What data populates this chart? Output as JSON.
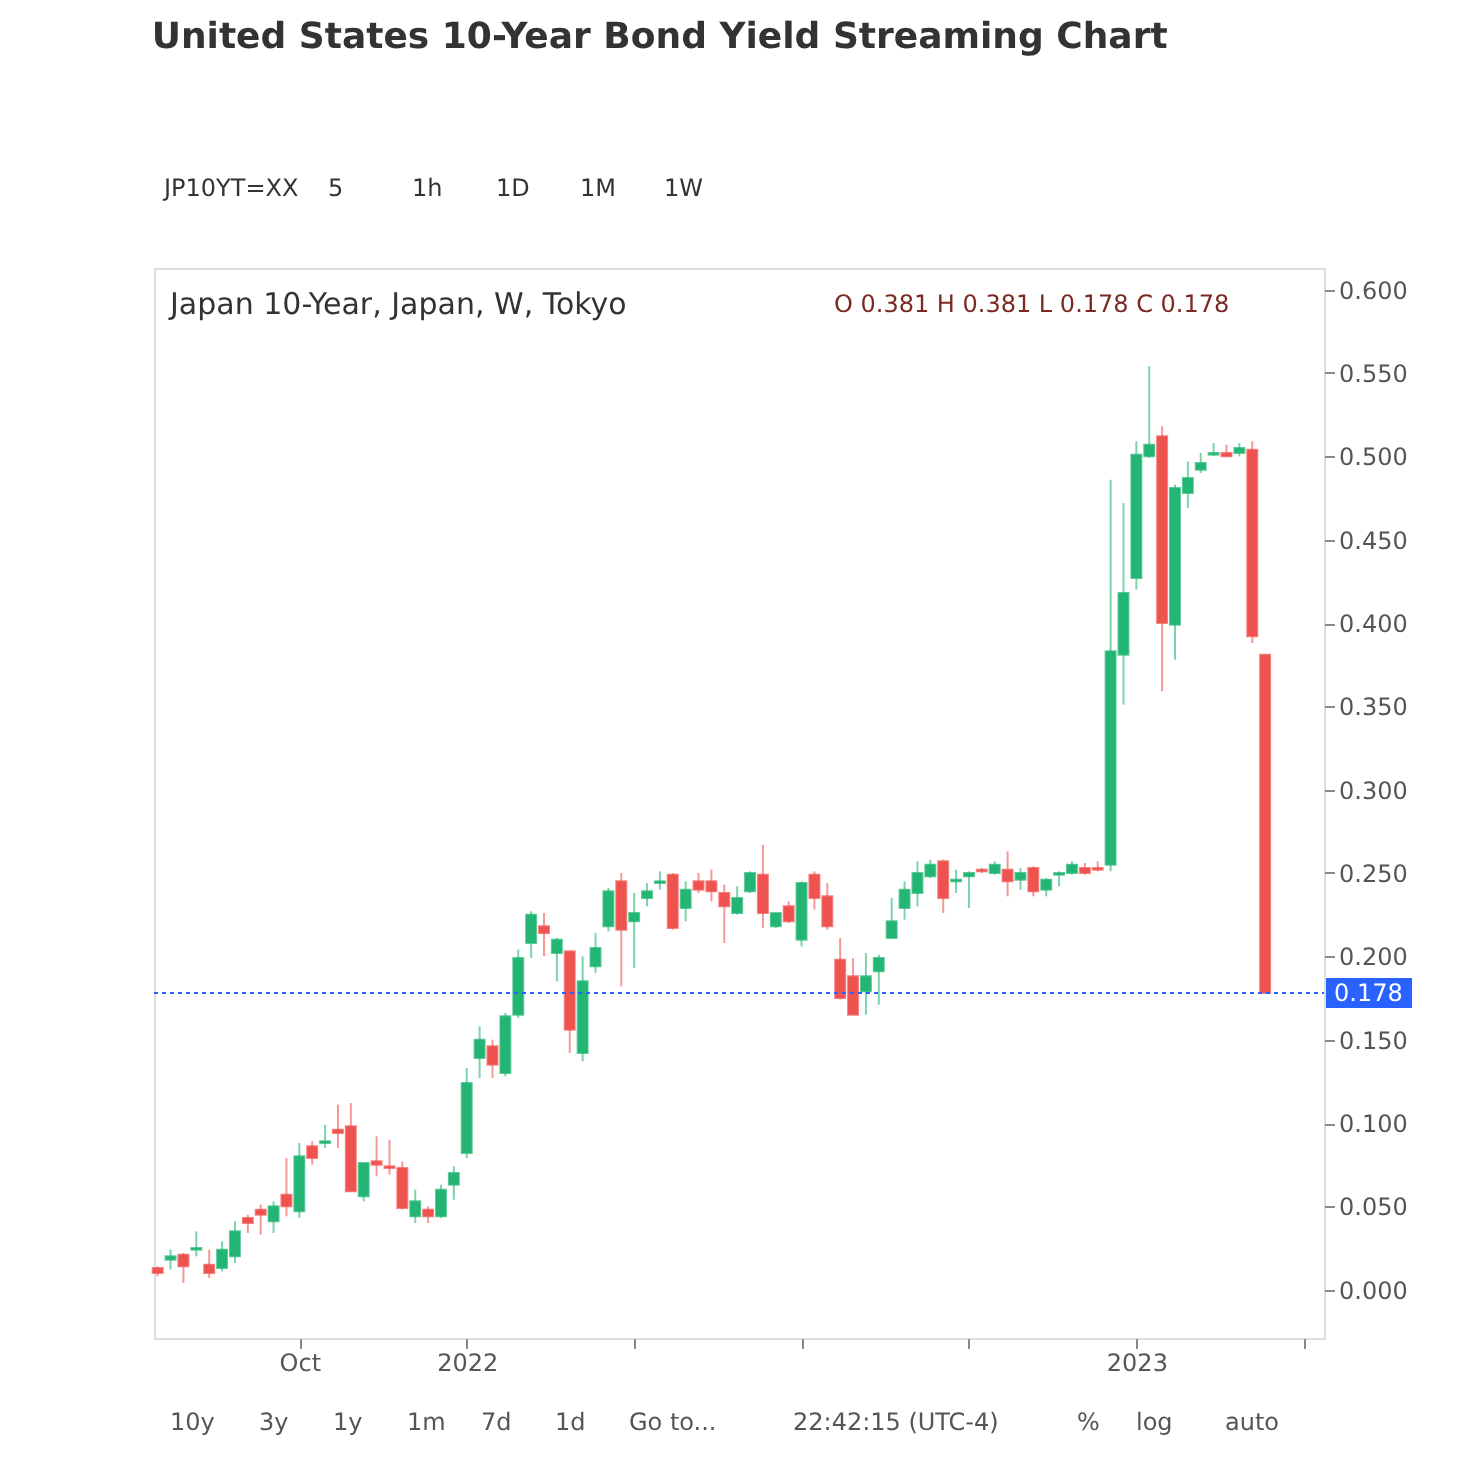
{
  "chart_data": {
    "type": "candlestick",
    "title": "United States 10-Year Bond Yield Streaming Chart",
    "subtitle": "Japan 10-Year, Japan, W, Tokyo",
    "annotations": [
      "O 0.381  H 0.381  L 0.178  C 0.178",
      "JP10YT=XX",
      "5",
      "1h",
      "1D",
      "1M",
      "1W",
      "10y",
      "3y",
      "1y",
      "1m",
      "7d",
      "1d",
      "Go to...",
      "22:42:15 (UTC-4)",
      "%",
      "log",
      "auto"
    ],
    "x": [
      "2021-07-19",
      "2021-07-26",
      "2021-08-02",
      "2021-08-09",
      "2021-08-16",
      "2021-08-23",
      "2021-08-30",
      "2021-09-06",
      "2021-09-13",
      "2021-09-20",
      "2021-09-27",
      "2021-10-04",
      "2021-10-11",
      "2021-10-18",
      "2021-10-25",
      "2021-11-01",
      "2021-11-08",
      "2021-11-15",
      "2021-11-22",
      "2021-11-29",
      "2021-12-06",
      "2021-12-13",
      "2021-12-20",
      "2021-12-27",
      "2022-01-03",
      "2022-01-10",
      "2022-01-17",
      "2022-01-24",
      "2022-01-31",
      "2022-02-07",
      "2022-02-14",
      "2022-02-21",
      "2022-02-28",
      "2022-03-07",
      "2022-03-14",
      "2022-03-21",
      "2022-03-28",
      "2022-04-04",
      "2022-04-11",
      "2022-04-18",
      "2022-04-25",
      "2022-05-02",
      "2022-05-09",
      "2022-05-16",
      "2022-05-23",
      "2022-05-30",
      "2022-06-06",
      "2022-06-13",
      "2022-06-20",
      "2022-06-27",
      "2022-07-04",
      "2022-07-11",
      "2022-07-18",
      "2022-07-25",
      "2022-08-01",
      "2022-08-08",
      "2022-08-15",
      "2022-08-22",
      "2022-08-29",
      "2022-09-05",
      "2022-09-12",
      "2022-09-19",
      "2022-09-26",
      "2022-10-03",
      "2022-10-10",
      "2022-10-17",
      "2022-10-24",
      "2022-10-31",
      "2022-11-07",
      "2022-11-14",
      "2022-11-21",
      "2022-11-28",
      "2022-12-05",
      "2022-12-12",
      "2022-12-19",
      "2022-12-26",
      "2023-01-02",
      "2023-01-09",
      "2023-01-16",
      "2023-01-23",
      "2023-01-30",
      "2023-02-06",
      "2023-02-13",
      "2023-02-20",
      "2023-02-27",
      "2023-03-06",
      "2023-03-13"
    ],
    "ohlc": [
      [
        0.013,
        0.014,
        0.008,
        0.01
      ],
      [
        0.018,
        0.024,
        0.012,
        0.02
      ],
      [
        0.021,
        0.022,
        0.004,
        0.014
      ],
      [
        0.024,
        0.035,
        0.02,
        0.025
      ],
      [
        0.015,
        0.024,
        0.007,
        0.01
      ],
      [
        0.013,
        0.029,
        0.011,
        0.024
      ],
      [
        0.02,
        0.041,
        0.016,
        0.035
      ],
      [
        0.043,
        0.045,
        0.034,
        0.04
      ],
      [
        0.048,
        0.051,
        0.033,
        0.045
      ],
      [
        0.041,
        0.053,
        0.034,
        0.05
      ],
      [
        0.057,
        0.079,
        0.044,
        0.05
      ],
      [
        0.047,
        0.088,
        0.043,
        0.08
      ],
      [
        0.086,
        0.089,
        0.075,
        0.079
      ],
      [
        0.088,
        0.099,
        0.085,
        0.089
      ],
      [
        0.096,
        0.111,
        0.085,
        0.094
      ],
      [
        0.098,
        0.112,
        0.059,
        0.059
      ],
      [
        0.056,
        0.076,
        0.053,
        0.076
      ],
      [
        0.077,
        0.092,
        0.068,
        0.075
      ],
      [
        0.074,
        0.09,
        0.069,
        0.073
      ],
      [
        0.073,
        0.077,
        0.048,
        0.049
      ],
      [
        0.044,
        0.06,
        0.04,
        0.053
      ],
      [
        0.048,
        0.05,
        0.04,
        0.044
      ],
      [
        0.044,
        0.063,
        0.043,
        0.06
      ],
      [
        0.063,
        0.074,
        0.054,
        0.07
      ],
      [
        0.082,
        0.133,
        0.079,
        0.124
      ],
      [
        0.139,
        0.158,
        0.127,
        0.15
      ],
      [
        0.146,
        0.15,
        0.127,
        0.135
      ],
      [
        0.13,
        0.166,
        0.128,
        0.164
      ],
      [
        0.165,
        0.204,
        0.163,
        0.199
      ],
      [
        0.208,
        0.227,
        0.199,
        0.225
      ],
      [
        0.218,
        0.226,
        0.2,
        0.214
      ],
      [
        0.202,
        0.211,
        0.185,
        0.21
      ],
      [
        0.203,
        0.203,
        0.142,
        0.156
      ],
      [
        0.142,
        0.2,
        0.137,
        0.185
      ],
      [
        0.194,
        0.214,
        0.19,
        0.205
      ],
      [
        0.218,
        0.241,
        0.215,
        0.239
      ],
      [
        0.245,
        0.25,
        0.182,
        0.216
      ],
      [
        0.221,
        0.238,
        0.193,
        0.226
      ],
      [
        0.235,
        0.244,
        0.23,
        0.239
      ],
      [
        0.244,
        0.251,
        0.24,
        0.245
      ],
      [
        0.249,
        0.25,
        0.216,
        0.217
      ],
      [
        0.229,
        0.245,
        0.221,
        0.24
      ],
      [
        0.245,
        0.25,
        0.238,
        0.24
      ],
      [
        0.245,
        0.252,
        0.233,
        0.239
      ],
      [
        0.238,
        0.243,
        0.208,
        0.23
      ],
      [
        0.226,
        0.242,
        0.225,
        0.235
      ],
      [
        0.239,
        0.251,
        0.238,
        0.25
      ],
      [
        0.249,
        0.267,
        0.217,
        0.226
      ],
      [
        0.218,
        0.226,
        0.217,
        0.226
      ],
      [
        0.23,
        0.233,
        0.22,
        0.221
      ],
      [
        0.21,
        0.245,
        0.206,
        0.244
      ],
      [
        0.249,
        0.251,
        0.228,
        0.235
      ],
      [
        0.236,
        0.244,
        0.216,
        0.218
      ],
      [
        0.198,
        0.211,
        0.174,
        0.175
      ],
      [
        0.188,
        0.199,
        0.165,
        0.165
      ],
      [
        0.179,
        0.202,
        0.165,
        0.188
      ],
      [
        0.191,
        0.201,
        0.171,
        0.199
      ],
      [
        0.211,
        0.235,
        0.211,
        0.221
      ],
      [
        0.229,
        0.245,
        0.222,
        0.24
      ],
      [
        0.238,
        0.257,
        0.23,
        0.25
      ],
      [
        0.248,
        0.258,
        0.247,
        0.255
      ],
      [
        0.257,
        0.258,
        0.226,
        0.235
      ],
      [
        0.245,
        0.252,
        0.238,
        0.246
      ],
      [
        0.248,
        0.251,
        0.229,
        0.25
      ],
      [
        0.252,
        0.253,
        0.25,
        0.251
      ],
      [
        0.25,
        0.257,
        0.249,
        0.255
      ],
      [
        0.252,
        0.263,
        0.236,
        0.245
      ],
      [
        0.246,
        0.253,
        0.24,
        0.25
      ],
      [
        0.253,
        0.254,
        0.236,
        0.239
      ],
      [
        0.24,
        0.247,
        0.236,
        0.246
      ],
      [
        0.249,
        0.251,
        0.242,
        0.25
      ],
      [
        0.25,
        0.257,
        0.249,
        0.255
      ],
      [
        0.253,
        0.256,
        0.249,
        0.25
      ],
      [
        0.253,
        0.257,
        0.251,
        0.252
      ],
      [
        0.255,
        0.486,
        0.251,
        0.383
      ],
      [
        0.381,
        0.472,
        0.351,
        0.418
      ],
      [
        0.427,
        0.509,
        0.42,
        0.501
      ],
      [
        0.5,
        0.554,
        0.499,
        0.507
      ],
      [
        0.512,
        0.518,
        0.359,
        0.4
      ],
      [
        0.399,
        0.483,
        0.378,
        0.481
      ],
      [
        0.478,
        0.497,
        0.469,
        0.487
      ],
      [
        0.492,
        0.502,
        0.49,
        0.496
      ],
      [
        0.501,
        0.508,
        0.5,
        0.502
      ],
      [
        0.502,
        0.507,
        0.5,
        0.5
      ],
      [
        0.502,
        0.508,
        0.5,
        0.505
      ],
      [
        0.504,
        0.509,
        0.388,
        0.392
      ],
      [
        0.381,
        0.381,
        0.178,
        0.178
      ]
    ],
    "colors": [
      "#ef5350",
      "#22b573",
      "#ef5350",
      "#22b573",
      "#ef5350",
      "#22b573",
      "#22b573",
      "#ef5350",
      "#ef5350",
      "#22b573",
      "#ef5350",
      "#22b573",
      "#ef5350",
      "#22b573",
      "#ef5350",
      "#ef5350",
      "#22b573",
      "#ef5350",
      "#ef5350",
      "#ef5350",
      "#22b573",
      "#ef5350",
      "#22b573",
      "#22b573",
      "#22b573",
      "#22b573",
      "#ef5350",
      "#22b573",
      "#22b573",
      "#22b573",
      "#ef5350",
      "#22b573",
      "#ef5350",
      "#22b573",
      "#22b573",
      "#22b573",
      "#ef5350",
      "#22b573",
      "#22b573",
      "#22b573",
      "#ef5350",
      "#22b573",
      "#ef5350",
      "#ef5350",
      "#ef5350",
      "#22b573",
      "#22b573",
      "#ef5350",
      "#22b573",
      "#ef5350",
      "#22b573",
      "#ef5350",
      "#ef5350",
      "#ef5350",
      "#ef5350",
      "#22b573",
      "#22b573",
      "#22b573",
      "#22b573",
      "#22b573",
      "#22b573",
      "#ef5350",
      "#22b573",
      "#22b573",
      "#ef5350",
      "#22b573",
      "#ef5350",
      "#22b573",
      "#ef5350",
      "#22b573",
      "#22b573",
      "#22b573",
      "#ef5350",
      "#ef5350",
      "#22b573",
      "#22b573",
      "#22b573",
      "#22b573",
      "#ef5350",
      "#22b573",
      "#22b573",
      "#22b573",
      "#22b573",
      "#ef5350",
      "#22b573",
      "#ef5350",
      "#ef5350"
    ],
    "xlim": [
      "2021-07-17",
      "2023-04-14"
    ],
    "xticks": [
      {
        "value": "2021-10-04",
        "label": "Oct"
      },
      {
        "value": "2022-01-03",
        "label": "2022"
      },
      {
        "value": "2022-04-04",
        "label": null
      },
      {
        "value": "2022-07-04",
        "label": null
      },
      {
        "value": "2022-10-03",
        "label": null
      },
      {
        "value": "2023-01-02",
        "label": "2023"
      },
      {
        "value": "2023-04-03",
        "label": null
      }
    ],
    "ylim": [
      -0.029,
      0.613
    ],
    "yticks": [
      {
        "value": 0,
        "label": "0.000"
      },
      {
        "value": 0.05,
        "label": "0.050"
      },
      {
        "value": 0.1,
        "label": "0.100"
      },
      {
        "value": 0.15,
        "label": "0.150"
      },
      {
        "value": 0.2,
        "label": "0.200"
      },
      {
        "value": 0.25,
        "label": "0.250"
      },
      {
        "value": 0.3,
        "label": "0.300"
      },
      {
        "value": 0.35,
        "label": "0.350"
      },
      {
        "value": 0.4,
        "label": "0.400"
      },
      {
        "value": 0.45,
        "label": "0.450"
      },
      {
        "value": 0.5,
        "label": "0.500"
      },
      {
        "value": 0.55,
        "label": "0.550"
      },
      {
        "value": 0.6,
        "label": "0.600"
      }
    ],
    "ref_lines": [
      {
        "axis": "y",
        "value": 0.178,
        "label": "0.178",
        "color": "#2962ff",
        "line_style": "dotted"
      }
    ]
  }
}
